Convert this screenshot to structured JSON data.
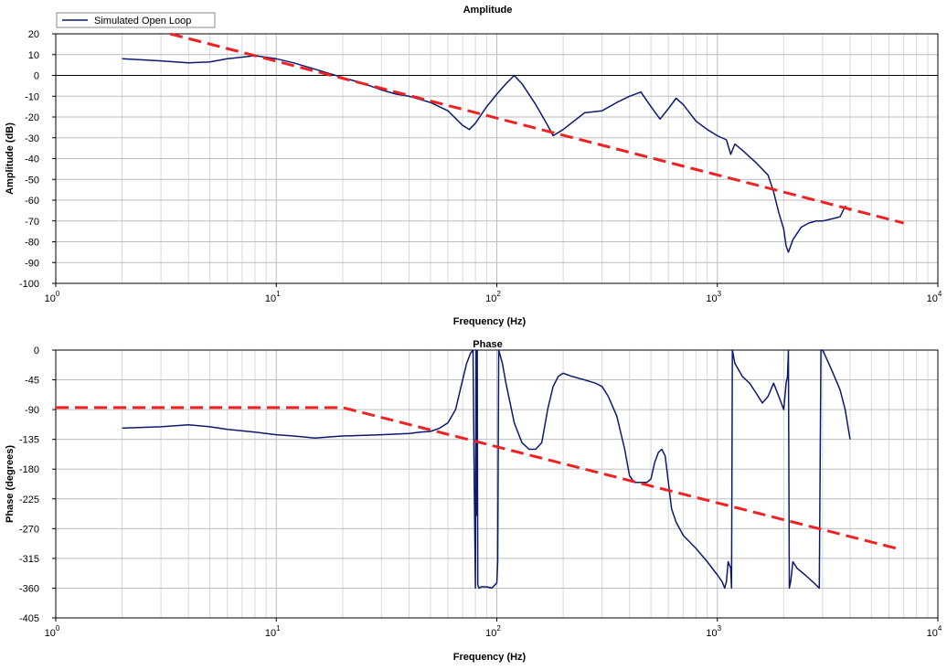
{
  "legend": {
    "label": "Simulated Open Loop"
  },
  "chart_data": [
    {
      "type": "line",
      "title": "Amplitude",
      "xlabel": "Frequency (Hz)",
      "ylabel": "Amplitude (dB)",
      "x_scale": "log",
      "xlim": [
        1,
        10000
      ],
      "ylim": [
        -100,
        20
      ],
      "xticks": [
        1,
        10,
        100,
        1000,
        10000
      ],
      "xtick_labels": [
        {
          "b": "10",
          "e": "0"
        },
        {
          "b": "10",
          "e": "1"
        },
        {
          "b": "10",
          "e": "2"
        },
        {
          "b": "10",
          "e": "3"
        },
        {
          "b": "10",
          "e": "4"
        }
      ],
      "yticks": [
        20,
        10,
        0,
        -10,
        -20,
        -30,
        -40,
        -50,
        -60,
        -70,
        -80,
        -90,
        -100
      ],
      "ytick_labels": [
        "20",
        "10",
        "0",
        "-10",
        "-20",
        "-30",
        "-40",
        "-50",
        "-60",
        "-70",
        "-80",
        "-90",
        "-100"
      ],
      "grid": true,
      "zero_line": true,
      "legend_position": "top-left",
      "series": [
        {
          "name": "Simulated Open Loop",
          "color": "#0c1a6e",
          "style": "solid",
          "x": [
            2,
            3,
            4,
            5,
            6,
            8,
            10,
            12,
            15,
            20,
            25,
            30,
            35,
            40,
            50,
            60,
            70,
            75,
            80,
            90,
            100,
            110,
            120,
            130,
            150,
            170,
            180,
            200,
            250,
            300,
            350,
            400,
            450,
            500,
            550,
            600,
            650,
            700,
            800,
            900,
            1000,
            1100,
            1150,
            1200,
            1300,
            1500,
            1700,
            1800,
            1900,
            2000,
            2050,
            2100,
            2200,
            2400,
            2600,
            2800,
            3000,
            3300,
            3600,
            3800,
            4000
          ],
          "y": [
            8,
            7,
            6,
            6.5,
            8,
            9.5,
            8,
            6,
            3,
            -1,
            -4,
            -7,
            -9,
            -10,
            -13,
            -17,
            -24,
            -26,
            -23,
            -15,
            -9,
            -4,
            0,
            -4,
            -14,
            -24,
            -29,
            -26,
            -18,
            -17,
            -13,
            -10,
            -8,
            -15,
            -21,
            -16,
            -11,
            -14,
            -22,
            -26,
            -29,
            -31,
            -38,
            -33,
            -36,
            -42,
            -48,
            -56,
            -66,
            -74,
            -82,
            -85,
            -79,
            -73,
            -71,
            -70,
            -70,
            -69,
            -68,
            -63,
            -65
          ]
        },
        {
          "name": "",
          "color": "#ee2222",
          "style": "dashed",
          "x": [
            3.3,
            7000
          ],
          "y": [
            20,
            -71
          ]
        }
      ]
    },
    {
      "type": "line",
      "title": "Phase",
      "xlabel": "Frequency (Hz)",
      "ylabel": "Phase (degrees)",
      "x_scale": "log",
      "xlim": [
        1,
        10000
      ],
      "ylim": [
        -405,
        0
      ],
      "xticks": [
        1,
        10,
        100,
        1000,
        10000
      ],
      "xtick_labels": [
        {
          "b": "10",
          "e": "0"
        },
        {
          "b": "10",
          "e": "1"
        },
        {
          "b": "10",
          "e": "2"
        },
        {
          "b": "10",
          "e": "3"
        },
        {
          "b": "10",
          "e": "4"
        }
      ],
      "yticks": [
        0,
        -45,
        -90,
        -135,
        -180,
        -225,
        -270,
        -315,
        -360,
        -405
      ],
      "ytick_labels": [
        "0",
        "-45",
        "-90",
        "-135",
        "-180",
        "-225",
        "-270",
        "-315",
        "-360",
        "-405"
      ],
      "grid": true,
      "series": [
        {
          "name": "Simulated Open Loop",
          "color": "#0c1a6e",
          "style": "solid",
          "x": [
            2,
            3,
            4,
            5,
            6,
            8,
            10,
            12,
            15,
            18,
            20,
            25,
            30,
            35,
            40,
            45,
            50,
            55,
            60,
            65,
            70,
            73,
            76,
            78,
            79,
            80,
            80.5,
            81,
            81.5,
            82,
            83,
            85,
            90,
            95,
            100,
            101,
            102,
            103,
            104,
            106,
            110,
            120,
            130,
            140,
            150,
            160,
            170,
            180,
            190,
            200,
            220,
            250,
            280,
            300,
            320,
            350,
            380,
            400,
            420,
            450,
            480,
            500,
            520,
            540,
            560,
            580,
            600,
            620,
            650,
            700,
            800,
            900,
            1000,
            1050,
            1080,
            1100,
            1120,
            1150,
            1160,
            1170,
            1200,
            1300,
            1400,
            1500,
            1600,
            1700,
            1800,
            1900,
            2000,
            2050,
            2080,
            2100,
            2120,
            2150,
            2200,
            2300,
            2500,
            2700,
            2900,
            2950,
            3000,
            3100,
            3300,
            3600,
            3800,
            4000
          ],
          "y": [
            -118,
            -116,
            -113,
            -116,
            -120,
            -124,
            -128,
            -130,
            -133,
            -131,
            -130,
            -129,
            -128,
            -127,
            -126,
            -124,
            -123,
            -118,
            -110,
            -90,
            -45,
            -20,
            -5,
            0,
            -200,
            -360,
            0,
            -250,
            0,
            -355,
            -360,
            -358,
            -358,
            -360,
            -352,
            -320,
            0,
            -5,
            -10,
            -20,
            -50,
            -110,
            -140,
            -150,
            -150,
            -140,
            -90,
            -55,
            -40,
            -35,
            -40,
            -45,
            -50,
            -55,
            -70,
            -100,
            -150,
            -190,
            -200,
            -200,
            -200,
            -195,
            -170,
            -155,
            -150,
            -160,
            -200,
            -240,
            -260,
            -280,
            -300,
            -320,
            -340,
            -350,
            -360,
            -350,
            -320,
            -330,
            -360,
            0,
            -20,
            -40,
            -50,
            -65,
            -80,
            -70,
            -50,
            -70,
            -90,
            -50,
            -40,
            0,
            -360,
            -350,
            -320,
            -330,
            -340,
            -350,
            -360,
            0,
            0,
            -10,
            -30,
            -60,
            -90,
            -135
          ]
        },
        {
          "name": "",
          "color": "#ee2222",
          "style": "dashed",
          "x": [
            1,
            20,
            6500
          ],
          "y": [
            -87,
            -87,
            -300
          ]
        }
      ]
    }
  ]
}
